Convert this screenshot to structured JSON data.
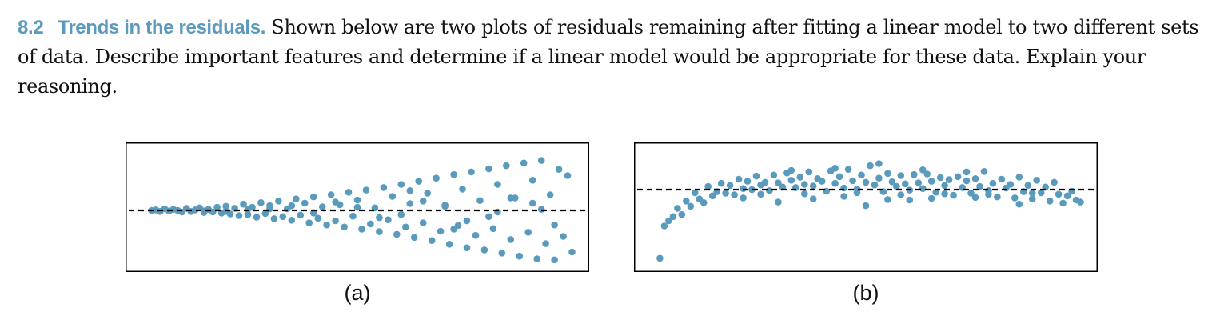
{
  "problem": {
    "number": "8.2",
    "title": "Trends in the residuals.",
    "text": "Shown below are two plots of residuals remaining after fitting a linear model to two different sets of data. Describe important features and determine if a linear model would be appropriate for these data. Explain your reasoning."
  },
  "colors": {
    "point": "#5a9bbd",
    "frame": "#000000",
    "reference_line": "#000000"
  },
  "chart_data": [
    {
      "type": "scatter",
      "panel_label": "(a)",
      "title": "",
      "xlabel": "",
      "ylabel": "",
      "xlim": [
        0,
        100
      ],
      "ylim": [
        -10,
        10
      ],
      "reference_line": {
        "y": 0,
        "style": "dashed"
      },
      "grid": false,
      "points": [
        [
          3,
          0
        ],
        [
          4,
          0.1
        ],
        [
          5,
          -0.2
        ],
        [
          6,
          0.3
        ],
        [
          7,
          -0.1
        ],
        [
          8,
          0.2
        ],
        [
          9,
          0
        ],
        [
          10,
          -0.3
        ],
        [
          11,
          0.4
        ],
        [
          12,
          -0.2
        ],
        [
          13,
          0.1
        ],
        [
          14,
          0.5
        ],
        [
          15,
          -0.4
        ],
        [
          16,
          0.2
        ],
        [
          17,
          -0.3
        ],
        [
          18,
          0.6
        ],
        [
          19,
          -0.5
        ],
        [
          20,
          0.8
        ],
        [
          21,
          -0.7
        ],
        [
          22,
          0.4
        ],
        [
          23,
          -1
        ],
        [
          24,
          1.2
        ],
        [
          25,
          -0.8
        ],
        [
          26,
          0.6
        ],
        [
          27,
          -1.3
        ],
        [
          28,
          1.5
        ],
        [
          29,
          -0.6
        ],
        [
          30,
          0.9
        ],
        [
          31,
          -1.6
        ],
        [
          32,
          1.8
        ],
        [
          33,
          -1.2
        ],
        [
          34,
          0.3
        ],
        [
          35,
          -1.9
        ],
        [
          36,
          2.2
        ],
        [
          37,
          -0.9
        ],
        [
          38,
          1.4
        ],
        [
          39,
          -2.4
        ],
        [
          40,
          2.6
        ],
        [
          41,
          -1.5
        ],
        [
          42,
          0.7
        ],
        [
          43,
          -2.8
        ],
        [
          44,
          3
        ],
        [
          45,
          -2
        ],
        [
          46,
          1.1
        ],
        [
          47,
          -3.2
        ],
        [
          48,
          3.5
        ],
        [
          49,
          -1.1
        ],
        [
          50,
          2
        ],
        [
          51,
          -3.6
        ],
        [
          52,
          3.9
        ],
        [
          53,
          -2.6
        ],
        [
          54,
          0.5
        ],
        [
          55,
          -4.1
        ],
        [
          56,
          4.4
        ],
        [
          57,
          -1.8
        ],
        [
          58,
          2.7
        ],
        [
          59,
          -4.6
        ],
        [
          60,
          5
        ],
        [
          61,
          -3.2
        ],
        [
          62,
          1.3
        ],
        [
          63,
          -5.2
        ],
        [
          64,
          5.6
        ],
        [
          65,
          -2.4
        ],
        [
          66,
          3.3
        ],
        [
          67,
          -5.8
        ],
        [
          68,
          6.2
        ],
        [
          69,
          -4
        ],
        [
          70,
          0.8
        ],
        [
          71,
          -6.5
        ],
        [
          72,
          6.9
        ],
        [
          73,
          -2.9
        ],
        [
          74,
          4.1
        ],
        [
          75,
          -7.2
        ],
        [
          76,
          7.4
        ],
        [
          77,
          -4.8
        ],
        [
          78,
          1.9
        ],
        [
          79,
          -7.6
        ],
        [
          80,
          8
        ],
        [
          81,
          -3.5
        ],
        [
          82,
          5
        ],
        [
          83,
          -8.2
        ],
        [
          84,
          8.6
        ],
        [
          85,
          -5.6
        ],
        [
          86,
          2.4
        ],
        [
          87,
          -8.8
        ],
        [
          88,
          9.1
        ],
        [
          89,
          -4.2
        ],
        [
          90,
          5.8
        ],
        [
          91,
          -9.3
        ],
        [
          92,
          9.6
        ],
        [
          93,
          -6.4
        ],
        [
          94,
          3
        ],
        [
          95,
          -9.5
        ],
        [
          96,
          7.9
        ],
        [
          97,
          -5
        ],
        [
          98,
          6.7
        ],
        [
          99,
          -8
        ],
        [
          20,
          -0.2
        ],
        [
          30,
          0.3
        ],
        [
          40,
          -0.5
        ],
        [
          50,
          0.6
        ],
        [
          60,
          -0.8
        ],
        [
          70,
          1
        ],
        [
          80,
          -1.2
        ],
        [
          90,
          1.4
        ],
        [
          45,
          1.6
        ],
        [
          55,
          -1.4
        ],
        [
          65,
          1.8
        ],
        [
          75,
          -2
        ],
        [
          85,
          2.4
        ],
        [
          95,
          -2.8
        ],
        [
          62,
          3.8
        ],
        [
          72,
          -3.6
        ],
        [
          82,
          -0.3
        ],
        [
          92,
          0.2
        ],
        [
          35,
          0.9
        ],
        [
          25,
          0.2
        ],
        [
          15,
          -0.1
        ]
      ]
    },
    {
      "type": "scatter",
      "panel_label": "(b)",
      "title": "",
      "xlabel": "",
      "ylabel": "",
      "xlim": [
        0,
        100
      ],
      "ylim": [
        -10,
        10
      ],
      "reference_line": {
        "y": 4,
        "style": "dashed"
      },
      "grid": false,
      "points": [
        [
          3,
          -9.2
        ],
        [
          4,
          -3
        ],
        [
          5,
          -2
        ],
        [
          6,
          -1.2
        ],
        [
          7,
          0.4
        ],
        [
          8,
          -0.8
        ],
        [
          9,
          1.8
        ],
        [
          10,
          0.8
        ],
        [
          11,
          3.4
        ],
        [
          12,
          2.2
        ],
        [
          13,
          1.5
        ],
        [
          14,
          4.6
        ],
        [
          15,
          2.8
        ],
        [
          16,
          3.6
        ],
        [
          17,
          5.2
        ],
        [
          18,
          3.3
        ],
        [
          19,
          4.8
        ],
        [
          20,
          3
        ],
        [
          21,
          6
        ],
        [
          22,
          4.2
        ],
        [
          23,
          5.6
        ],
        [
          24,
          4
        ],
        [
          25,
          6.6
        ],
        [
          26,
          4.9
        ],
        [
          27,
          5.4
        ],
        [
          28,
          3.8
        ],
        [
          29,
          6.8
        ],
        [
          30,
          5.3
        ],
        [
          31,
          4.5
        ],
        [
          32,
          7.2
        ],
        [
          33,
          5.8
        ],
        [
          34,
          4.4
        ],
        [
          35,
          6.4
        ],
        [
          36,
          5
        ],
        [
          37,
          7.4
        ],
        [
          38,
          4.7
        ],
        [
          39,
          6.1
        ],
        [
          40,
          5.6
        ],
        [
          41,
          3.7
        ],
        [
          42,
          7.6
        ],
        [
          43,
          5.2
        ],
        [
          44,
          6.5
        ],
        [
          45,
          4.3
        ],
        [
          46,
          7.9
        ],
        [
          47,
          5.7
        ],
        [
          48,
          4.1
        ],
        [
          49,
          6.8
        ],
        [
          50,
          5.4
        ],
        [
          51,
          8.6
        ],
        [
          52,
          4.9
        ],
        [
          53,
          6.2
        ],
        [
          54,
          3.6
        ],
        [
          55,
          7.1
        ],
        [
          56,
          5.5
        ],
        [
          57,
          4.6
        ],
        [
          58,
          6.7
        ],
        [
          59,
          5.1
        ],
        [
          60,
          3.9
        ],
        [
          61,
          6.9
        ],
        [
          62,
          5.3
        ],
        [
          63,
          4.2
        ],
        [
          64,
          7
        ],
        [
          65,
          5.6
        ],
        [
          66,
          3.5
        ],
        [
          67,
          6.3
        ],
        [
          68,
          4.8
        ],
        [
          69,
          5.9
        ],
        [
          70,
          2.9
        ],
        [
          71,
          6.5
        ],
        [
          72,
          4.4
        ],
        [
          73,
          5.7
        ],
        [
          74,
          3.3
        ],
        [
          75,
          6.1
        ],
        [
          76,
          4.6
        ],
        [
          77,
          7.5
        ],
        [
          78,
          3.8
        ],
        [
          79,
          5.2
        ],
        [
          80,
          2.6
        ],
        [
          81,
          6
        ],
        [
          82,
          4.3
        ],
        [
          83,
          5
        ],
        [
          84,
          2.4
        ],
        [
          85,
          6.4
        ],
        [
          86,
          3.6
        ],
        [
          87,
          4.8
        ],
        [
          88,
          2.2
        ],
        [
          89,
          5.8
        ],
        [
          90,
          3.4
        ],
        [
          91,
          4.5
        ],
        [
          92,
          1.8
        ],
        [
          93,
          5.4
        ],
        [
          94,
          3.1
        ],
        [
          95,
          1.4
        ],
        [
          96,
          2.8
        ],
        [
          97,
          3.7
        ],
        [
          98,
          2
        ],
        [
          99,
          1.6
        ],
        [
          22,
          2.4
        ],
        [
          30,
          1.6
        ],
        [
          45,
          2.7
        ],
        [
          55,
          2.1
        ],
        [
          65,
          2.3
        ],
        [
          75,
          2.5
        ],
        [
          85,
          1.2
        ],
        [
          26,
          3.1
        ],
        [
          36,
          3.2
        ],
        [
          48,
          3.4
        ],
        [
          58,
          3
        ],
        [
          68,
          3.2
        ],
        [
          78,
          3.1
        ],
        [
          88,
          3.3
        ],
        [
          33,
          7.7
        ],
        [
          43,
          8.1
        ],
        [
          53,
          9
        ],
        [
          63,
          7.8
        ],
        [
          73,
          7.4
        ],
        [
          50,
          0.9
        ],
        [
          38,
          2.2
        ],
        [
          60,
          2
        ]
      ]
    }
  ]
}
